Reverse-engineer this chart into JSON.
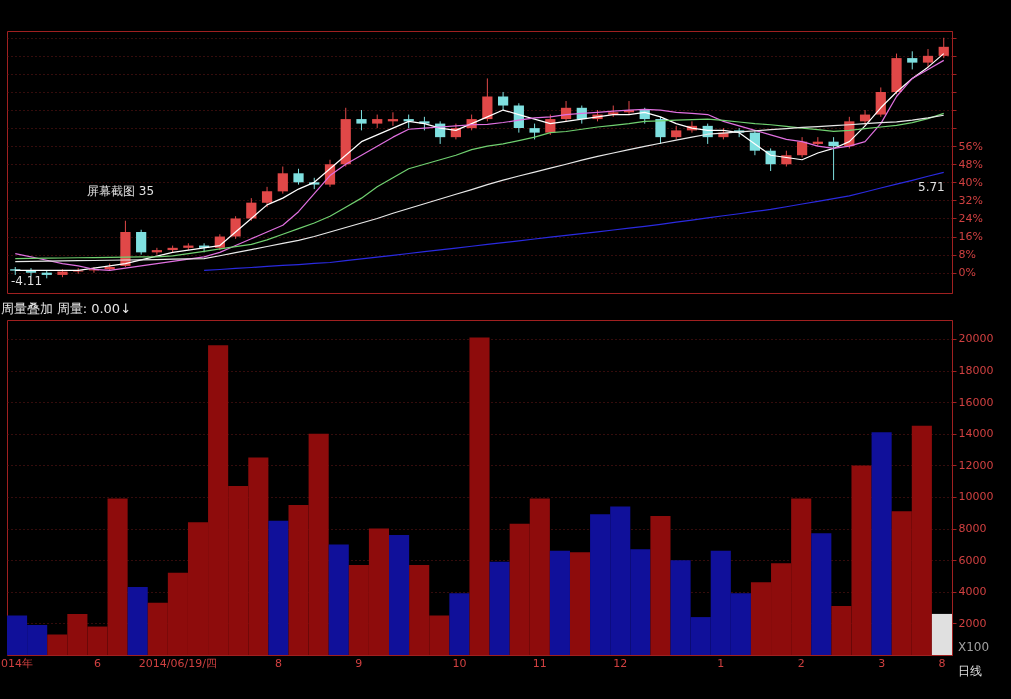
{
  "chart_data": [
    {
      "type": "candlestick",
      "categories": [
        null,
        null,
        null,
        null,
        null,
        null,
        null,
        null,
        null,
        null,
        null,
        null,
        null,
        null,
        null,
        null,
        null,
        null,
        null,
        null,
        null,
        null,
        null,
        null,
        null,
        null,
        null,
        null,
        null,
        null,
        null,
        null,
        null,
        null,
        null,
        null,
        null,
        null,
        null,
        null,
        null,
        null,
        null,
        null,
        null,
        null,
        null,
        null,
        null,
        null,
        null,
        null,
        null,
        null,
        null,
        null,
        null,
        null,
        null,
        null
      ],
      "ohlc": [
        [
          1.5,
          2.5,
          -1,
          0.9
        ],
        [
          0.9,
          2,
          -1.5,
          0
        ],
        [
          0,
          1,
          -2.5,
          -1
        ],
        [
          -1,
          1.5,
          -2,
          0.5
        ],
        [
          0.5,
          2,
          -0.5,
          1
        ],
        [
          1,
          2.5,
          0,
          1.5
        ],
        [
          1.5,
          4,
          1,
          2.5
        ],
        [
          3,
          23,
          2.5,
          18
        ],
        [
          18,
          19,
          8,
          9
        ],
        [
          9,
          11,
          8,
          10
        ],
        [
          10,
          12,
          9,
          11
        ],
        [
          11,
          13,
          10,
          12
        ],
        [
          12,
          13,
          9,
          11
        ],
        [
          11,
          17,
          10,
          16
        ],
        [
          16,
          25,
          15,
          24
        ],
        [
          24,
          33,
          23,
          31
        ],
        [
          31,
          38,
          29,
          36
        ],
        [
          36,
          47,
          35,
          44
        ],
        [
          44,
          46,
          39,
          40
        ],
        [
          40,
          42,
          37,
          39
        ],
        [
          39,
          50,
          38,
          48
        ],
        [
          48,
          73,
          47,
          68
        ],
        [
          68,
          72,
          63,
          66
        ],
        [
          66,
          70,
          64,
          68
        ],
        [
          67,
          71,
          65,
          68
        ],
        [
          68,
          70,
          64,
          67
        ],
        [
          67,
          69,
          63,
          66
        ],
        [
          66,
          67,
          57,
          60
        ],
        [
          60,
          66,
          59,
          64
        ],
        [
          64,
          70,
          63,
          68
        ],
        [
          68,
          86,
          67,
          78
        ],
        [
          78,
          80,
          72,
          74
        ],
        [
          74,
          75,
          62,
          64
        ],
        [
          64,
          66,
          59,
          62
        ],
        [
          62,
          70,
          61,
          68
        ],
        [
          68,
          76,
          67,
          73
        ],
        [
          73,
          74,
          66,
          68
        ],
        [
          68,
          72,
          67,
          70
        ],
        [
          70,
          74,
          69,
          71
        ],
        [
          71,
          76,
          70,
          72
        ],
        [
          72,
          73,
          66,
          68
        ],
        [
          68,
          69,
          57,
          60
        ],
        [
          60,
          65,
          59,
          63
        ],
        [
          63,
          67,
          62,
          65
        ],
        [
          65,
          66,
          57,
          60
        ],
        [
          60,
          64,
          59,
          62
        ],
        [
          63,
          64,
          60,
          62
        ],
        [
          62,
          63,
          52,
          54
        ],
        [
          54,
          55,
          45,
          48
        ],
        [
          48,
          54,
          47,
          52
        ],
        [
          52,
          60,
          51,
          58
        ],
        [
          57,
          60,
          56,
          58
        ],
        [
          58,
          60,
          41,
          56
        ],
        [
          56,
          69,
          55,
          67
        ],
        [
          67,
          72,
          65,
          70
        ],
        [
          70,
          82,
          69,
          80
        ],
        [
          80,
          97,
          79,
          95
        ],
        [
          95,
          98,
          90,
          93
        ],
        [
          93,
          99,
          91,
          96
        ],
        [
          96,
          104,
          95,
          100
        ]
      ],
      "colors": [
        "#7fe0e0",
        "#7fe0e0",
        "#7fe0e0",
        "#e04848",
        "#e04848",
        "#e04848",
        "#e04848",
        "#e04848",
        "#7fe0e0",
        "#e04848",
        "#e04848",
        "#e04848",
        "#7fe0e0",
        "#e04848",
        "#e04848",
        "#e04848",
        "#e04848",
        "#e04848",
        "#7fe0e0",
        "#7fe0e0",
        "#e04848",
        "#e04848",
        "#7fe0e0",
        "#e04848",
        "#e04848",
        "#7fe0e0",
        "#7fe0e0",
        "#7fe0e0",
        "#e04848",
        "#e04848",
        "#e04848",
        "#7fe0e0",
        "#7fe0e0",
        "#7fe0e0",
        "#e04848",
        "#e04848",
        "#7fe0e0",
        "#e04848",
        "#e04848",
        "#e04848",
        "#7fe0e0",
        "#7fe0e0",
        "#e04848",
        "#e04848",
        "#7fe0e0",
        "#e04848",
        "#7fe0e0",
        "#7fe0e0",
        "#7fe0e0",
        "#e04848",
        "#e04848",
        "#e04848",
        "#7fe0e0",
        "#e04848",
        "#e04848",
        "#e04848",
        "#e04848",
        "#7fe0e0",
        "#e04848",
        "#e04848"
      ],
      "series": [
        {
          "type": "line",
          "color": "#ffffff",
          "values": [
            1,
            1,
            1,
            1,
            1,
            2,
            3,
            4,
            5.7,
            7.3,
            9,
            10,
            11,
            12,
            18,
            24,
            30,
            33,
            37,
            40,
            46,
            52,
            58,
            61,
            64,
            67,
            66,
            64,
            63,
            66,
            69,
            72,
            70,
            68,
            66,
            67,
            68,
            69,
            70,
            70,
            71,
            69,
            66,
            64,
            63,
            63,
            62,
            57,
            52,
            51,
            50,
            53,
            55,
            58,
            65,
            73,
            80,
            86,
            91,
            97
          ]
        },
        {
          "type": "line",
          "color": "#e070e0",
          "values": [
            8.4,
            7,
            5.5,
            4,
            3,
            1.5,
            1,
            2,
            3,
            4,
            5,
            6,
            7,
            9,
            12,
            15,
            18,
            21,
            27,
            35,
            43,
            48,
            52,
            56,
            60,
            63.5,
            64,
            64.5,
            65,
            65.5,
            65.7,
            66.5,
            67.5,
            68.5,
            69,
            70,
            70.5,
            71,
            71.5,
            72,
            72.3,
            72,
            71,
            70.5,
            70,
            67,
            65,
            63,
            61,
            59,
            58,
            56,
            55,
            56,
            58,
            66,
            78,
            86,
            90,
            94
          ]
        },
        {
          "type": "line",
          "color": "#70d070",
          "values": [
            6.2,
            6.3,
            6.4,
            6.5,
            6.6,
            6.7,
            6.8,
            6.9,
            7,
            7,
            7.4,
            8.4,
            9.4,
            10.5,
            11.5,
            12.5,
            14.5,
            17,
            19.5,
            22,
            25,
            29,
            33,
            38,
            42,
            46,
            48,
            50,
            52,
            54.5,
            56,
            57,
            58.5,
            60,
            62,
            62.5,
            63.5,
            64.5,
            65.2,
            66,
            67,
            67.2,
            67.5,
            67.8,
            68,
            67.4,
            66.7,
            66,
            65.5,
            64.8,
            64,
            63.3,
            62.6,
            63,
            63.8,
            64.5,
            65.2,
            66.4,
            68.2,
            70.5
          ]
        },
        {
          "type": "line",
          "color": "#e8e8e8",
          "values": [
            4.9,
            5,
            5.1,
            5.2,
            5.3,
            5.4,
            5.5,
            5.6,
            5.7,
            5.8,
            6,
            6.1,
            6.2,
            7.5,
            8.9,
            10.2,
            11.6,
            13,
            14.3,
            16,
            18,
            20,
            22,
            24,
            26.3,
            28.4,
            30.5,
            32.6,
            34.7,
            36.8,
            39,
            41,
            42.8,
            44.5,
            46.3,
            48,
            49.8,
            51.5,
            53,
            54.5,
            55.9,
            57.3,
            58.7,
            60,
            61.3,
            61.8,
            62.3,
            62.8,
            63.3,
            63.8,
            64.3,
            64.7,
            65.1,
            65.5,
            66,
            66.4,
            66.8,
            67.5,
            68.5,
            69.7
          ]
        },
        {
          "type": "line",
          "color": "#2a2ae0",
          "values": [
            null,
            null,
            null,
            null,
            null,
            null,
            null,
            null,
            null,
            null,
            null,
            null,
            1,
            1.4,
            1.9,
            2.3,
            2.8,
            3.2,
            3.6,
            4.1,
            4.5,
            5.3,
            6.1,
            6.9,
            7.7,
            8.5,
            9.3,
            10.1,
            10.9,
            11.7,
            12.5,
            13.3,
            14.1,
            14.9,
            15.7,
            16.5,
            17.3,
            18.1,
            18.9,
            19.7,
            20.5,
            21.4,
            22.4,
            23.3,
            24.3,
            25.2,
            26.1,
            27.1,
            28,
            29.2,
            30.4,
            31.6,
            32.8,
            34,
            35.7,
            37.5,
            39.2,
            40.9,
            42.7,
            44.4
          ]
        }
      ],
      "ylim": [
        -9,
        107
      ],
      "yticks": [
        {
          "value": 0,
          "label": "0%"
        },
        {
          "value": 8,
          "label": "8%"
        },
        {
          "value": 16,
          "label": "16%"
        },
        {
          "value": 24,
          "label": "24%"
        },
        {
          "value": 32,
          "label": "32%"
        },
        {
          "value": 40,
          "label": "40%"
        },
        {
          "value": 48,
          "label": "48%"
        },
        {
          "value": 56,
          "label": "56%"
        },
        {
          "value": 64,
          "label": null
        },
        {
          "value": 72,
          "label": null
        },
        {
          "value": 80,
          "label": null
        },
        {
          "value": 88,
          "label": null
        },
        {
          "value": 96,
          "label": null
        },
        {
          "value": 104,
          "label": null
        }
      ],
      "tick_labels": "y",
      "grid": "y",
      "annotations": [
        "屏幕截图 35",
        "-4.11",
        "5.71"
      ]
    },
    {
      "type": "bar",
      "title": "周量叠加  周量: 0.00↓",
      "categories": [
        "014年",
        null,
        null,
        null,
        "6",
        null,
        null,
        null,
        "2014/06/19/四",
        null,
        null,
        null,
        null,
        "8",
        null,
        null,
        null,
        "9",
        null,
        null,
        null,
        null,
        "10",
        null,
        null,
        null,
        "11",
        null,
        null,
        null,
        "12",
        null,
        null,
        null,
        null,
        "1",
        null,
        null,
        null,
        "2",
        null,
        null,
        null,
        "3",
        null,
        null,
        "8"
      ],
      "values": [
        2500,
        1900,
        1300,
        2600,
        1800,
        9900,
        4300,
        3300,
        5200,
        8400,
        19600,
        10700,
        12500,
        8500,
        9500,
        14000,
        7000,
        5700,
        8000,
        7600,
        5700,
        2500,
        3900,
        20100,
        5900,
        8300,
        9900,
        6600,
        6500,
        8900,
        9400,
        6700,
        8800,
        6000,
        2400,
        6600,
        3900,
        4600,
        5800,
        9900,
        7700,
        3100,
        12000,
        14100,
        9100,
        14500,
        2600
      ],
      "colors": [
        "#10109a",
        "#10109a",
        "#8e0c0c",
        "#8e0c0c",
        "#8e0c0c",
        "#8e0c0c",
        "#10109a",
        "#8e0c0c",
        "#8e0c0c",
        "#8e0c0c",
        "#8e0c0c",
        "#8e0c0c",
        "#8e0c0c",
        "#10109a",
        "#8e0c0c",
        "#8e0c0c",
        "#10109a",
        "#8e0c0c",
        "#8e0c0c",
        "#10109a",
        "#8e0c0c",
        "#8e0c0c",
        "#10109a",
        "#8e0c0c",
        "#10109a",
        "#8e0c0c",
        "#8e0c0c",
        "#10109a",
        "#8e0c0c",
        "#10109a",
        "#10109a",
        "#10109a",
        "#8e0c0c",
        "#10109a",
        "#10109a",
        "#10109a",
        "#10109a",
        "#8e0c0c",
        "#8e0c0c",
        "#8e0c0c",
        "#10109a",
        "#8e0c0c",
        "#8e0c0c",
        "#10109a",
        "#8e0c0c",
        "#8e0c0c",
        "#e0e0e0"
      ],
      "ylim": [
        0,
        21200
      ],
      "yticks": [
        2000,
        4000,
        6000,
        8000,
        10000,
        12000,
        14000,
        16000,
        18000,
        20000
      ],
      "grid": "y",
      "annotations": [
        "X100",
        "日线"
      ]
    }
  ]
}
